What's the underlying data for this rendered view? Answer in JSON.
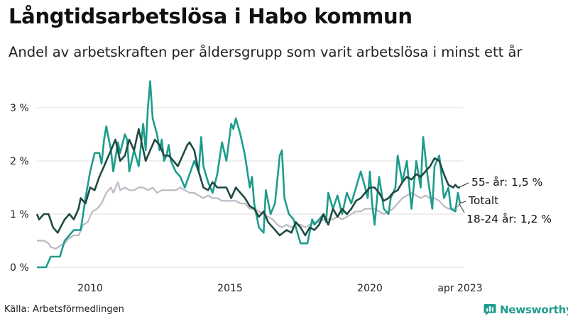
{
  "header": {
    "title": "Långtidsarbetslösa i Habo kommun",
    "subtitle": "Andel av arbetskraften per åldersgrupp som varit arbetslösa i minst ett år"
  },
  "footer": {
    "source": "Källa: Arbetsförmedlingen",
    "brand": "Newsworthy"
  },
  "colors": {
    "youth": "#1e9c8c",
    "senior": "#1f4a43",
    "total": "#bdb9c4",
    "grid": "#dcdcdc",
    "brand": "#1e9c8c"
  },
  "chart_data": {
    "type": "line",
    "title": "Långtidsarbetslösa i Habo kommun",
    "subtitle": "Andel av arbetskraften per åldersgrupp som varit arbetslösa i minst ett år",
    "x_ticks": [
      "2010",
      "2015",
      "2020",
      "apr 2023"
    ],
    "y_ticks": [
      "0 %",
      "1 %",
      "2 %",
      "3 %"
    ],
    "ylim": [
      0,
      3.5
    ],
    "grid": true,
    "series": [
      {
        "key": "youth",
        "name": "18-24 år",
        "end_label": "18-24 år: 1,2 %",
        "color": "#1e9c8c",
        "points": [
          [
            2008.0,
            0.0
          ],
          [
            2008.33,
            0.0
          ],
          [
            2008.5,
            0.2
          ],
          [
            2008.83,
            0.2
          ],
          [
            2009.0,
            0.5
          ],
          [
            2009.33,
            0.7
          ],
          [
            2009.58,
            0.7
          ],
          [
            2009.75,
            1.3
          ],
          [
            2009.92,
            1.8
          ],
          [
            2010.08,
            2.15
          ],
          [
            2010.25,
            2.15
          ],
          [
            2010.33,
            1.95
          ],
          [
            2010.42,
            2.4
          ],
          [
            2010.5,
            2.65
          ],
          [
            2010.67,
            2.2
          ],
          [
            2010.75,
            1.8
          ],
          [
            2010.92,
            2.35
          ],
          [
            2011.0,
            2.15
          ],
          [
            2011.17,
            2.5
          ],
          [
            2011.25,
            2.4
          ],
          [
            2011.33,
            1.8
          ],
          [
            2011.5,
            2.2
          ],
          [
            2011.67,
            1.9
          ],
          [
            2011.83,
            2.7
          ],
          [
            2011.92,
            2.2
          ],
          [
            2012.0,
            3.0
          ],
          [
            2012.08,
            3.5
          ],
          [
            2012.17,
            2.8
          ],
          [
            2012.33,
            2.5
          ],
          [
            2012.42,
            2.2
          ],
          [
            2012.5,
            2.4
          ],
          [
            2012.58,
            2.0
          ],
          [
            2012.67,
            2.1
          ],
          [
            2012.75,
            2.3
          ],
          [
            2012.83,
            2.0
          ],
          [
            2013.0,
            1.8
          ],
          [
            2013.17,
            1.7
          ],
          [
            2013.33,
            1.5
          ],
          [
            2013.5,
            1.75
          ],
          [
            2013.67,
            2.0
          ],
          [
            2013.83,
            1.8
          ],
          [
            2013.92,
            2.45
          ],
          [
            2014.0,
            1.9
          ],
          [
            2014.17,
            1.6
          ],
          [
            2014.33,
            1.4
          ],
          [
            2014.5,
            1.75
          ],
          [
            2014.67,
            2.35
          ],
          [
            2014.83,
            2.0
          ],
          [
            2015.0,
            2.7
          ],
          [
            2015.08,
            2.6
          ],
          [
            2015.17,
            2.8
          ],
          [
            2015.33,
            2.5
          ],
          [
            2015.5,
            2.1
          ],
          [
            2015.67,
            1.5
          ],
          [
            2015.75,
            1.7
          ],
          [
            2015.83,
            1.2
          ],
          [
            2016.0,
            0.75
          ],
          [
            2016.17,
            0.65
          ],
          [
            2016.25,
            1.45
          ],
          [
            2016.42,
            1.0
          ],
          [
            2016.58,
            1.2
          ],
          [
            2016.75,
            2.1
          ],
          [
            2016.83,
            2.2
          ],
          [
            2016.92,
            1.3
          ],
          [
            2017.08,
            1.0
          ],
          [
            2017.25,
            0.9
          ],
          [
            2017.5,
            0.45
          ],
          [
            2017.75,
            0.45
          ],
          [
            2017.92,
            0.9
          ],
          [
            2018.0,
            0.8
          ],
          [
            2018.17,
            0.9
          ],
          [
            2018.33,
            1.0
          ],
          [
            2018.42,
            0.85
          ],
          [
            2018.5,
            1.4
          ],
          [
            2018.67,
            1.1
          ],
          [
            2018.83,
            1.35
          ],
          [
            2019.0,
            1.0
          ],
          [
            2019.17,
            1.4
          ],
          [
            2019.33,
            1.2
          ],
          [
            2019.5,
            1.5
          ],
          [
            2019.67,
            1.8
          ],
          [
            2019.83,
            1.5
          ],
          [
            2019.92,
            1.3
          ],
          [
            2020.0,
            1.8
          ],
          [
            2020.08,
            1.2
          ],
          [
            2020.17,
            0.8
          ],
          [
            2020.33,
            1.7
          ],
          [
            2020.42,
            1.4
          ],
          [
            2020.5,
            1.1
          ],
          [
            2020.67,
            1.0
          ],
          [
            2020.75,
            1.3
          ],
          [
            2020.92,
            1.5
          ],
          [
            2021.0,
            2.1
          ],
          [
            2021.17,
            1.6
          ],
          [
            2021.33,
            2.0
          ],
          [
            2021.5,
            1.1
          ],
          [
            2021.67,
            2.0
          ],
          [
            2021.83,
            1.5
          ],
          [
            2021.92,
            2.45
          ],
          [
            2022.08,
            1.7
          ],
          [
            2022.25,
            1.1
          ],
          [
            2022.33,
            1.9
          ],
          [
            2022.5,
            2.1
          ],
          [
            2022.67,
            1.3
          ],
          [
            2022.83,
            1.5
          ],
          [
            2022.92,
            1.1
          ],
          [
            2023.08,
            1.05
          ],
          [
            2023.17,
            1.4
          ],
          [
            2023.25,
            1.2
          ]
        ]
      },
      {
        "key": "senior",
        "name": "55- år",
        "end_label": "55- år: 1,5 %",
        "color": "#1f4a43",
        "points": [
          [
            2008.0,
            1.0
          ],
          [
            2008.08,
            0.9
          ],
          [
            2008.25,
            1.0
          ],
          [
            2008.42,
            1.0
          ],
          [
            2008.58,
            0.75
          ],
          [
            2008.75,
            0.65
          ],
          [
            2009.0,
            0.9
          ],
          [
            2009.17,
            1.0
          ],
          [
            2009.33,
            0.9
          ],
          [
            2009.5,
            1.1
          ],
          [
            2009.58,
            1.3
          ],
          [
            2009.75,
            1.2
          ],
          [
            2009.92,
            1.5
          ],
          [
            2010.08,
            1.45
          ],
          [
            2010.25,
            1.7
          ],
          [
            2010.42,
            1.9
          ],
          [
            2010.5,
            2.0
          ],
          [
            2010.67,
            2.2
          ],
          [
            2010.83,
            2.4
          ],
          [
            2011.0,
            2.0
          ],
          [
            2011.17,
            2.1
          ],
          [
            2011.33,
            2.4
          ],
          [
            2011.5,
            2.2
          ],
          [
            2011.67,
            2.6
          ],
          [
            2011.75,
            2.4
          ],
          [
            2011.92,
            2.0
          ],
          [
            2012.08,
            2.2
          ],
          [
            2012.25,
            2.4
          ],
          [
            2012.42,
            2.3
          ],
          [
            2012.58,
            2.1
          ],
          [
            2012.75,
            2.1
          ],
          [
            2012.92,
            2.0
          ],
          [
            2013.08,
            1.9
          ],
          [
            2013.25,
            2.1
          ],
          [
            2013.42,
            2.3
          ],
          [
            2013.5,
            2.35
          ],
          [
            2013.67,
            2.2
          ],
          [
            2013.83,
            1.8
          ],
          [
            2014.0,
            1.5
          ],
          [
            2014.17,
            1.45
          ],
          [
            2014.33,
            1.6
          ],
          [
            2014.5,
            1.5
          ],
          [
            2014.67,
            1.5
          ],
          [
            2014.83,
            1.5
          ],
          [
            2015.0,
            1.3
          ],
          [
            2015.17,
            1.5
          ],
          [
            2015.33,
            1.4
          ],
          [
            2015.5,
            1.3
          ],
          [
            2015.67,
            1.15
          ],
          [
            2015.83,
            1.1
          ],
          [
            2016.0,
            0.95
          ],
          [
            2016.17,
            1.05
          ],
          [
            2016.33,
            0.85
          ],
          [
            2016.5,
            0.75
          ],
          [
            2016.75,
            0.6
          ],
          [
            2017.0,
            0.7
          ],
          [
            2017.17,
            0.65
          ],
          [
            2017.33,
            0.85
          ],
          [
            2017.5,
            0.75
          ],
          [
            2017.67,
            0.6
          ],
          [
            2017.83,
            0.75
          ],
          [
            2018.0,
            0.7
          ],
          [
            2018.17,
            0.8
          ],
          [
            2018.33,
            1.0
          ],
          [
            2018.5,
            0.8
          ],
          [
            2018.67,
            1.1
          ],
          [
            2018.83,
            0.95
          ],
          [
            2019.0,
            1.1
          ],
          [
            2019.17,
            1.0
          ],
          [
            2019.33,
            1.1
          ],
          [
            2019.5,
            1.25
          ],
          [
            2019.67,
            1.3
          ],
          [
            2019.83,
            1.4
          ],
          [
            2020.0,
            1.5
          ],
          [
            2020.17,
            1.5
          ],
          [
            2020.33,
            1.4
          ],
          [
            2020.5,
            1.25
          ],
          [
            2020.67,
            1.3
          ],
          [
            2020.83,
            1.4
          ],
          [
            2021.0,
            1.45
          ],
          [
            2021.17,
            1.6
          ],
          [
            2021.33,
            1.7
          ],
          [
            2021.5,
            1.65
          ],
          [
            2021.67,
            1.75
          ],
          [
            2021.83,
            1.7
          ],
          [
            2022.0,
            1.8
          ],
          [
            2022.17,
            1.9
          ],
          [
            2022.33,
            2.05
          ],
          [
            2022.5,
            2.0
          ],
          [
            2022.67,
            1.75
          ],
          [
            2022.83,
            1.55
          ],
          [
            2023.0,
            1.5
          ],
          [
            2023.08,
            1.55
          ],
          [
            2023.17,
            1.5
          ],
          [
            2023.25,
            1.5
          ]
        ]
      },
      {
        "key": "total",
        "name": "Totalt",
        "end_label": "Totalt",
        "color": "#bdb9c4",
        "points": [
          [
            2008.0,
            0.5
          ],
          [
            2008.25,
            0.5
          ],
          [
            2008.42,
            0.45
          ],
          [
            2008.5,
            0.38
          ],
          [
            2008.67,
            0.35
          ],
          [
            2008.83,
            0.4
          ],
          [
            2009.0,
            0.45
          ],
          [
            2009.17,
            0.55
          ],
          [
            2009.33,
            0.6
          ],
          [
            2009.5,
            0.6
          ],
          [
            2009.67,
            0.8
          ],
          [
            2009.83,
            0.85
          ],
          [
            2010.0,
            1.05
          ],
          [
            2010.17,
            1.1
          ],
          [
            2010.33,
            1.2
          ],
          [
            2010.5,
            1.4
          ],
          [
            2010.67,
            1.5
          ],
          [
            2010.75,
            1.4
          ],
          [
            2010.92,
            1.6
          ],
          [
            2011.0,
            1.45
          ],
          [
            2011.17,
            1.5
          ],
          [
            2011.33,
            1.45
          ],
          [
            2011.5,
            1.45
          ],
          [
            2011.67,
            1.5
          ],
          [
            2011.83,
            1.5
          ],
          [
            2012.0,
            1.45
          ],
          [
            2012.17,
            1.5
          ],
          [
            2012.33,
            1.4
          ],
          [
            2012.5,
            1.45
          ],
          [
            2012.67,
            1.45
          ],
          [
            2012.83,
            1.45
          ],
          [
            2013.0,
            1.45
          ],
          [
            2013.17,
            1.5
          ],
          [
            2013.33,
            1.45
          ],
          [
            2013.5,
            1.4
          ],
          [
            2013.67,
            1.4
          ],
          [
            2013.83,
            1.35
          ],
          [
            2014.0,
            1.3
          ],
          [
            2014.17,
            1.35
          ],
          [
            2014.33,
            1.3
          ],
          [
            2014.5,
            1.3
          ],
          [
            2014.67,
            1.25
          ],
          [
            2014.83,
            1.25
          ],
          [
            2015.0,
            1.25
          ],
          [
            2015.17,
            1.25
          ],
          [
            2015.33,
            1.2
          ],
          [
            2015.5,
            1.2
          ],
          [
            2015.67,
            1.1
          ],
          [
            2015.83,
            1.1
          ],
          [
            2016.0,
            1.05
          ],
          [
            2016.17,
            1.0
          ],
          [
            2016.33,
            0.95
          ],
          [
            2016.5,
            0.9
          ],
          [
            2016.67,
            0.8
          ],
          [
            2016.83,
            0.75
          ],
          [
            2017.0,
            0.8
          ],
          [
            2017.17,
            0.75
          ],
          [
            2017.33,
            0.8
          ],
          [
            2017.5,
            0.8
          ],
          [
            2017.67,
            0.75
          ],
          [
            2017.83,
            0.8
          ],
          [
            2018.0,
            0.85
          ],
          [
            2018.17,
            0.85
          ],
          [
            2018.33,
            0.9
          ],
          [
            2018.5,
            0.9
          ],
          [
            2018.67,
            0.9
          ],
          [
            2018.83,
            0.95
          ],
          [
            2019.0,
            0.9
          ],
          [
            2019.17,
            0.95
          ],
          [
            2019.33,
            1.0
          ],
          [
            2019.5,
            1.05
          ],
          [
            2019.67,
            1.05
          ],
          [
            2019.83,
            1.1
          ],
          [
            2020.0,
            1.1
          ],
          [
            2020.17,
            1.1
          ],
          [
            2020.33,
            1.05
          ],
          [
            2020.5,
            1.0
          ],
          [
            2020.67,
            1.05
          ],
          [
            2020.83,
            1.1
          ],
          [
            2021.0,
            1.2
          ],
          [
            2021.17,
            1.3
          ],
          [
            2021.33,
            1.35
          ],
          [
            2021.5,
            1.4
          ],
          [
            2021.67,
            1.35
          ],
          [
            2021.83,
            1.3
          ],
          [
            2022.0,
            1.35
          ],
          [
            2022.17,
            1.3
          ],
          [
            2022.33,
            1.3
          ],
          [
            2022.5,
            1.25
          ],
          [
            2022.67,
            1.15
          ],
          [
            2022.83,
            1.1
          ],
          [
            2023.0,
            1.1
          ],
          [
            2023.17,
            1.15
          ],
          [
            2023.25,
            1.2
          ]
        ]
      }
    ]
  }
}
